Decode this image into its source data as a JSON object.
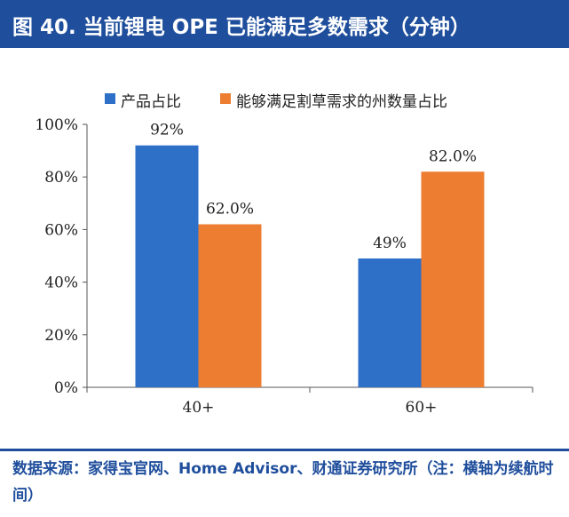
{
  "header": {
    "title": "图 40. 当前锂电 OPE 已能满足多数需求（分钟）"
  },
  "colors": {
    "header_bg": "#1f4e9c",
    "series_blue": "#2e6fc7",
    "series_orange": "#ed7d31",
    "axis": "#555555"
  },
  "chart_data": {
    "type": "bar",
    "title": "当前锂电 OPE 已能满足多数需求（分钟）",
    "categories": [
      "40+",
      "60+"
    ],
    "series": [
      {
        "name": "产品占比",
        "values": [
          92,
          49
        ],
        "labels": [
          "92%",
          "49%"
        ]
      },
      {
        "name": "能够满足割草需求的州数量占比",
        "values": [
          62,
          82
        ],
        "labels": [
          "62.0%",
          "82.0%"
        ]
      }
    ],
    "ylim": [
      0,
      100
    ],
    "yticks": [
      "0%",
      "20%",
      "40%",
      "60%",
      "80%",
      "100%"
    ],
    "ytick_values": [
      0,
      20,
      40,
      60,
      80,
      100
    ],
    "xlabel": "",
    "ylabel": "",
    "legend_position": "top-left",
    "grid": false
  },
  "footer": {
    "source": "数据来源：家得宝官网、Home Advisor、财通证券研究所（注：横轴为续航时间）"
  }
}
